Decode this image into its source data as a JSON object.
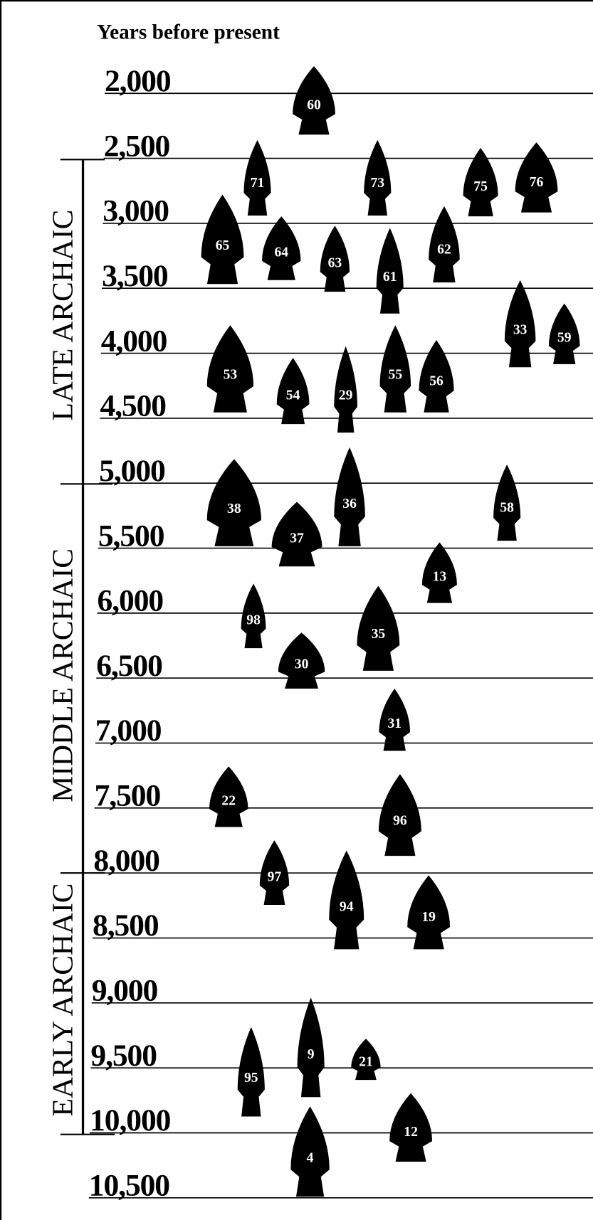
{
  "header": {
    "title": "Years before present"
  },
  "axis": {
    "ticks": [
      "2,000",
      "2,500",
      "3,000",
      "3,500",
      "4,000",
      "4,500",
      "5,000",
      "5,500",
      "6,000",
      "6,500",
      "7,000",
      "7,500",
      "8,000",
      "8,500",
      "9,000",
      "9,500",
      "10,000",
      "10,500"
    ]
  },
  "periods": [
    "LATE ARCHAIC",
    "MIDDLE ARCHAIC",
    "EARLY ARCHAIC"
  ],
  "points": [
    "60",
    "71",
    "73",
    "75",
    "76",
    "65",
    "64",
    "63",
    "61",
    "62",
    "33",
    "59",
    "53",
    "54",
    "29",
    "55",
    "56",
    "38",
    "36",
    "58",
    "37",
    "13",
    "98",
    "35",
    "30",
    "31",
    "22",
    "96",
    "97",
    "94",
    "19",
    "9",
    "95",
    "21",
    "12",
    "4"
  ]
}
